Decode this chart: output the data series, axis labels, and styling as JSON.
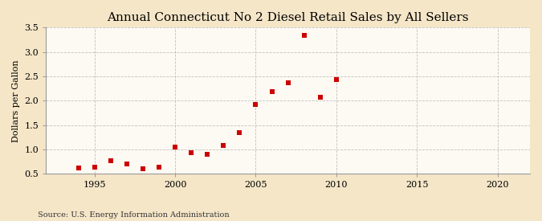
{
  "title": "Annual Connecticut No 2 Diesel Retail Sales by All Sellers",
  "ylabel": "Dollars per Gallon",
  "source": "Source: U.S. Energy Information Administration",
  "figure_bg_color": "#f5e6c8",
  "plot_bg_color": "#fdfaf3",
  "marker_color": "#cc0000",
  "grid_color": "#bbbbbb",
  "spine_color": "#999999",
  "xlim": [
    1992,
    2022
  ],
  "ylim": [
    0.5,
    3.5
  ],
  "xticks": [
    1995,
    2000,
    2005,
    2010,
    2015,
    2020
  ],
  "yticks": [
    0.5,
    1.0,
    1.5,
    2.0,
    2.5,
    3.0,
    3.5
  ],
  "years": [
    1994,
    1995,
    1996,
    1997,
    1998,
    1999,
    2000,
    2001,
    2002,
    2003,
    2004,
    2005,
    2006,
    2007,
    2008,
    2009,
    2010
  ],
  "values": [
    0.62,
    0.64,
    0.77,
    0.7,
    0.6,
    0.64,
    1.05,
    0.94,
    0.9,
    1.08,
    1.35,
    1.92,
    2.19,
    2.37,
    3.34,
    2.07,
    2.43
  ],
  "title_fontsize": 11,
  "ylabel_fontsize": 8,
  "tick_fontsize": 8,
  "source_fontsize": 7,
  "marker_size": 4
}
